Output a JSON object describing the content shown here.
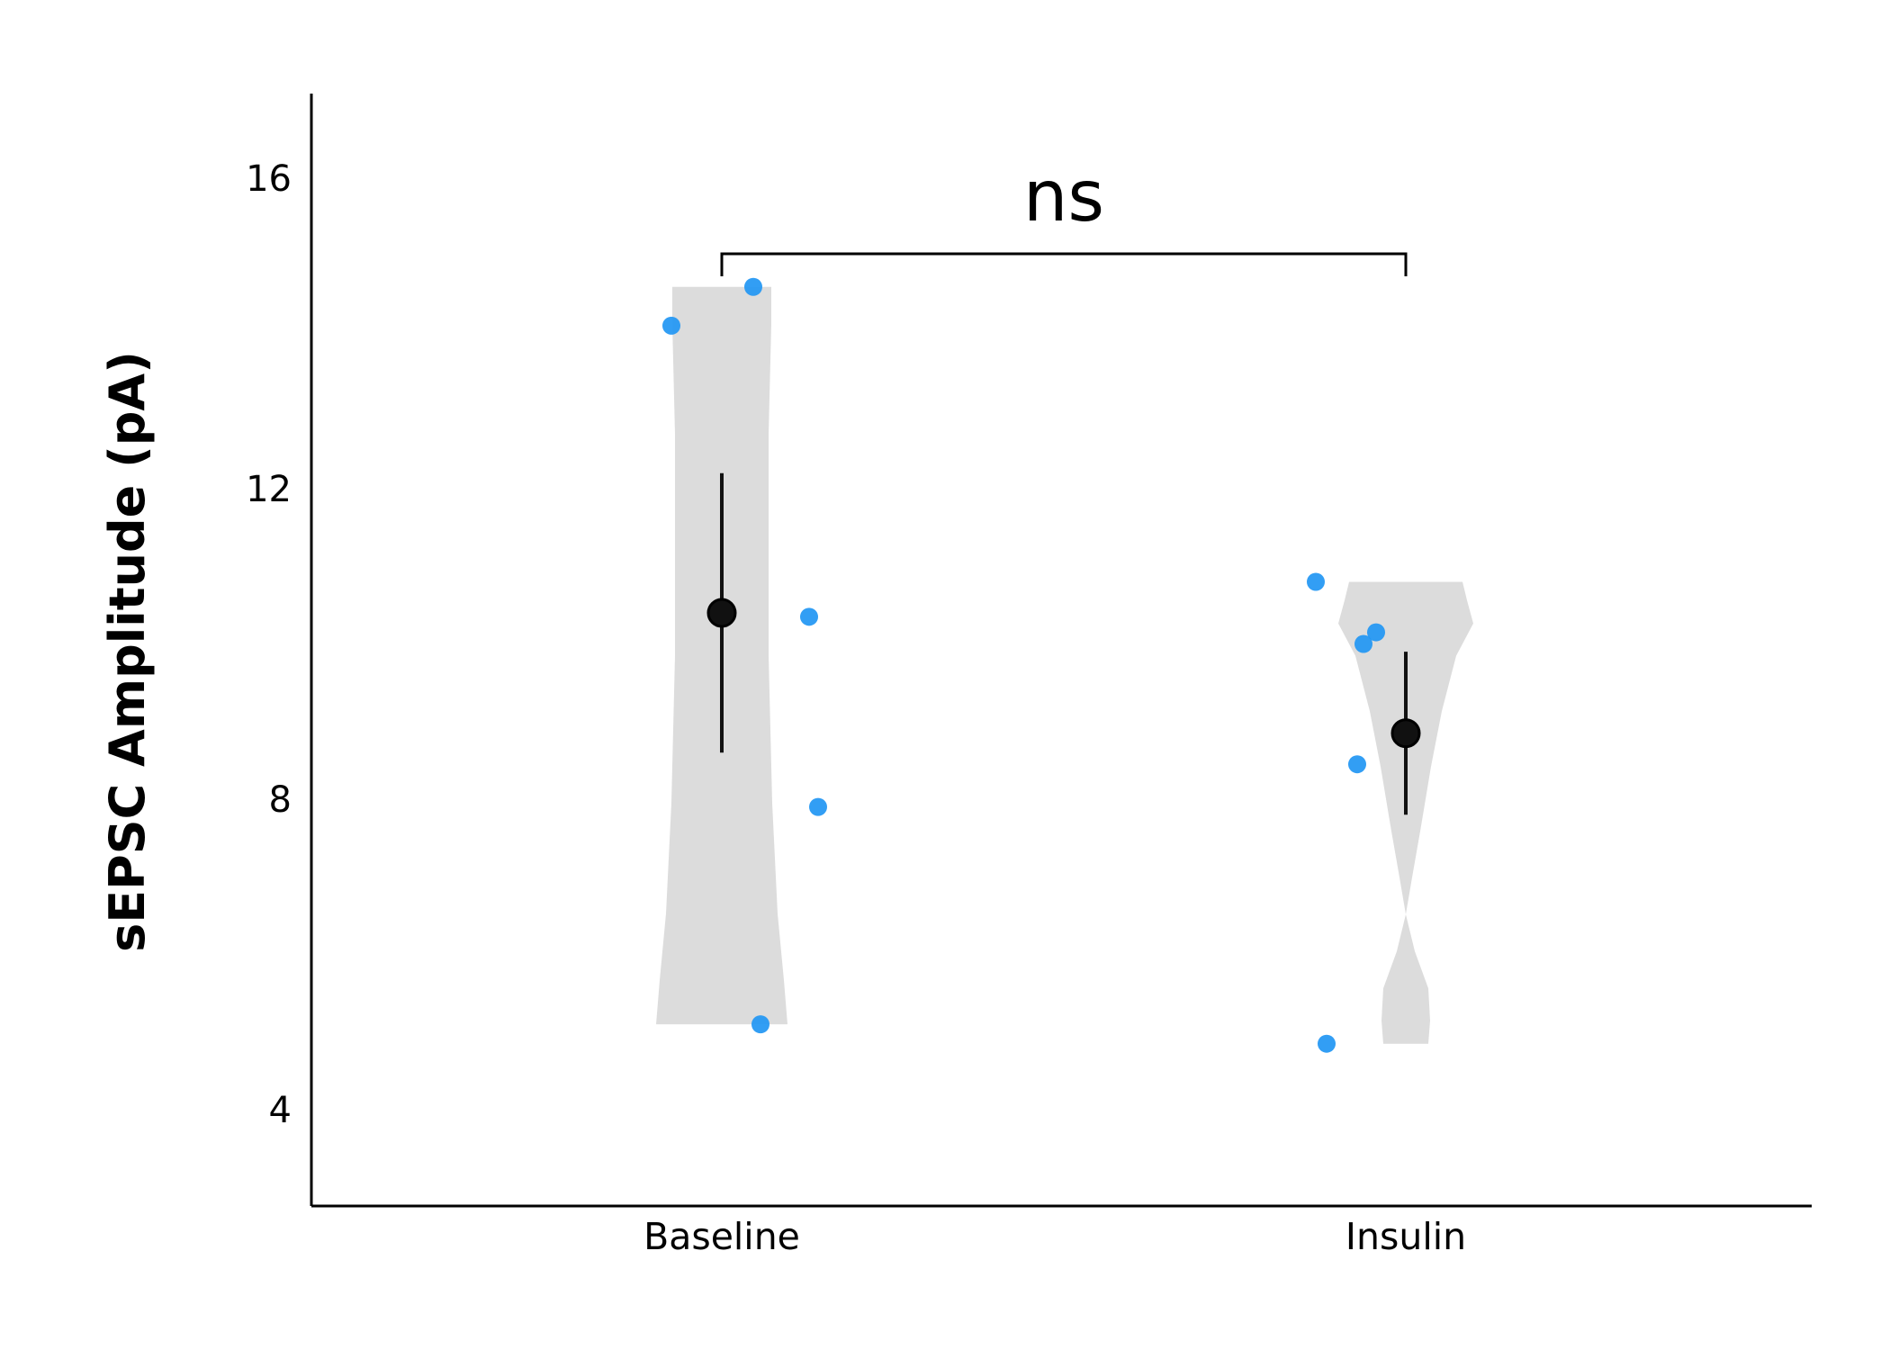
{
  "chart_data": {
    "type": "violin",
    "title": "",
    "xlabel": "",
    "ylabel": "sEPSC Amplitude (pA)",
    "ylim": [
      2.75,
      17.1
    ],
    "yticks": [
      4,
      8,
      12,
      16
    ],
    "grid": false,
    "categories": [
      "Baseline",
      "Insulin"
    ],
    "colors": {
      "violin": "#dcdcdc",
      "points": "#2196f3",
      "mean": "#111111",
      "axis": "#000000"
    },
    "groups": [
      {
        "name": "Baseline",
        "points": [
          14.1,
          14.6,
          10.35,
          7.9,
          5.1
        ],
        "mean": 10.4,
        "error": [
          8.6,
          12.2
        ],
        "violin_range": [
          5.1,
          14.6
        ]
      },
      {
        "name": "Insulin",
        "points": [
          10.8,
          10.15,
          10.0,
          8.45,
          4.85
        ],
        "mean": 8.85,
        "error": [
          7.8,
          9.9
        ],
        "violin_range": [
          4.85,
          10.8
        ]
      }
    ],
    "comparisons": [
      {
        "groups": [
          "Baseline",
          "Insulin"
        ],
        "label": "ns"
      }
    ]
  }
}
